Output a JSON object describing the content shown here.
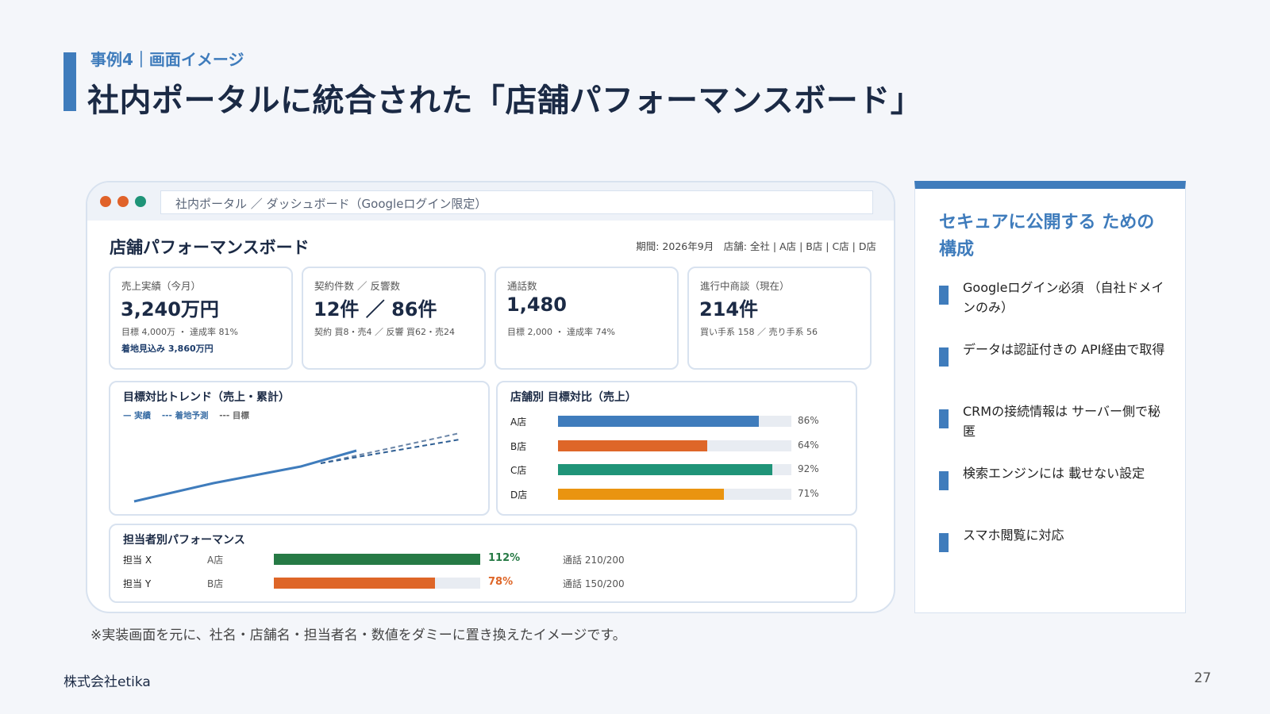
{
  "header": {
    "kicker": "事例4｜画面イメージ",
    "title": "社内ポータルに統合された「店舗パフォーマンスボード」"
  },
  "browser": {
    "url": "社内ポータル ／ ダッシュボード（Googleログイン限定）",
    "dot_colors": [
      "#e0622a",
      "#e0622a",
      "#1f9478"
    ]
  },
  "dashboard": {
    "title": "店舗パフォーマンスボード",
    "period": "期間: 2026年9月　店舗: 全社 | A店 | B店 | C店 | D店",
    "kpis": [
      {
        "label": "売上実績（今月）",
        "value": "3,240万円",
        "sub1": "目標 4,000万 ・ 達成率 81%",
        "sub2": "着地見込み 3,860万円"
      },
      {
        "label": "契約件数 ／ 反響数",
        "value": "12件 ／ 86件",
        "sub1": "契約 買8・売4 ／ 反響 買62・売24",
        "sub2": ""
      },
      {
        "label": "通話数",
        "value": "1,480",
        "sub1": "目標 2,000 ・ 達成率 74%",
        "sub2": ""
      },
      {
        "label": "進行中商談（現在）",
        "value": "214件",
        "sub1": "買い手系 158 ／ 売り手系 56",
        "sub2": ""
      }
    ],
    "trend": {
      "title": "目標対比トレンド（売上・累計）",
      "legend": {
        "actual": "— 実績",
        "forecast": "--- 着地予測",
        "target": "--- 目標"
      }
    },
    "stores": {
      "title": "店舗別 目標対比（売上）",
      "rows": [
        {
          "name": "A店",
          "pct_label": "86%",
          "value": 0.86,
          "color": "#3f7cbc"
        },
        {
          "name": "B店",
          "pct_label": "64%",
          "value": 0.64,
          "color": "#de6628"
        },
        {
          "name": "C店",
          "pct_label": "92%",
          "value": 0.92,
          "color": "#1f9478"
        },
        {
          "name": "D店",
          "pct_label": "71%",
          "value": 0.71,
          "color": "#ea9410"
        }
      ]
    },
    "people": {
      "title": "担当者別パフォーマンス",
      "rows": [
        {
          "name": "担当 X",
          "store": "A店",
          "pct_label": "112%",
          "value": 1.0,
          "color": "#267a45",
          "calls": "通話 210/200"
        },
        {
          "name": "担当 Y",
          "store": "B店",
          "pct_label": "78%",
          "value": 0.78,
          "color": "#de6628",
          "calls": "通話 150/200"
        }
      ]
    }
  },
  "sidebar": {
    "title": "セキュアに公開する ための構成",
    "items": [
      "Googleログイン必須 （自社ドメインのみ）",
      "データは認証付きの API経由で取得",
      "CRMの接続情報は サーバー側で秘匿",
      "検索エンジンには 載せない設定",
      "スマホ閲覧に対応"
    ]
  },
  "footnote": "※実装画面を元に、社名・店舗名・担当者名・数値をダミーに置き換えたイメージです。",
  "footer": {
    "company": "株式会社etika",
    "page": "27"
  }
}
